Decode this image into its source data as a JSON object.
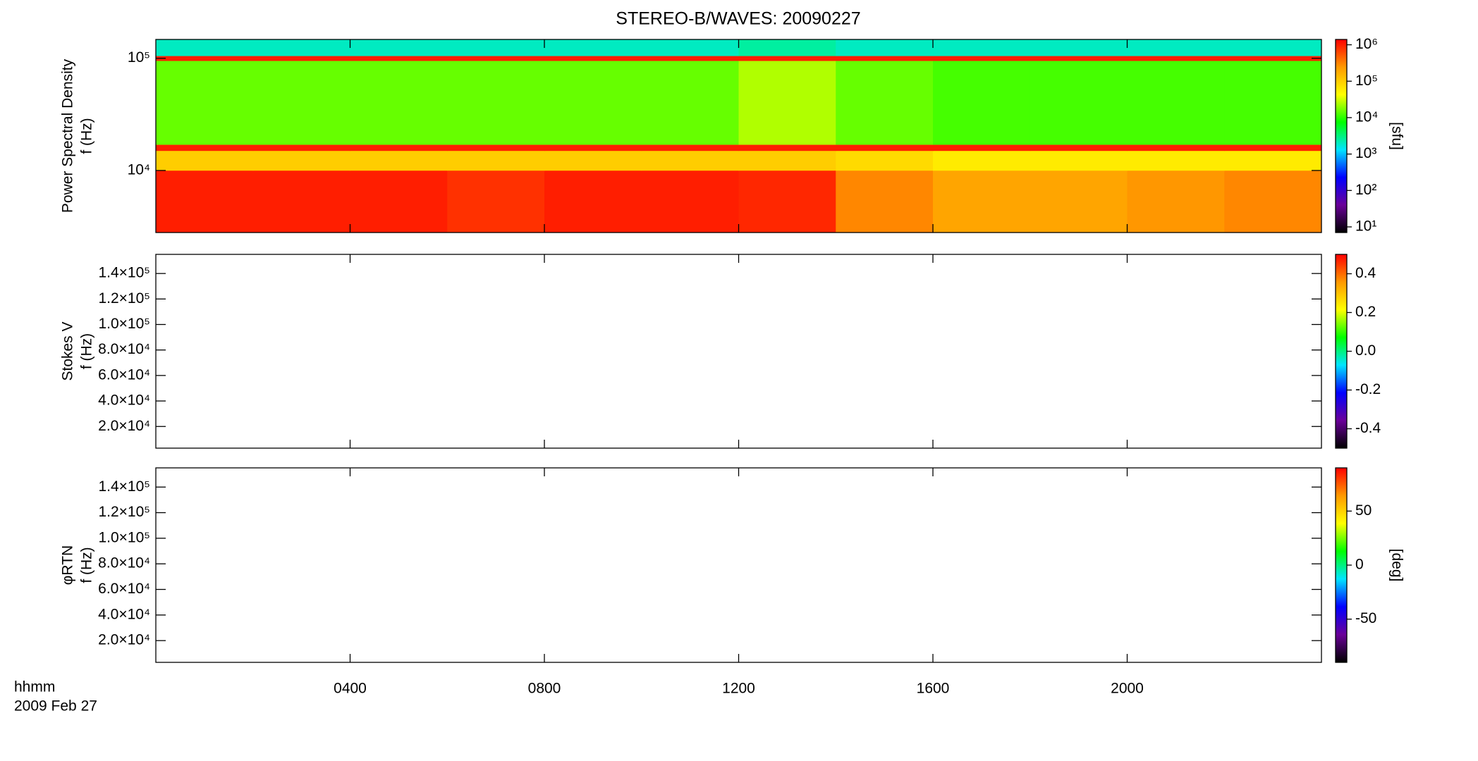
{
  "title": "STEREO-B/WAVES: 20090227",
  "chart_data": [
    {
      "type": "heatmap",
      "ylabel": [
        "Power Spectral Density",
        "f (Hz)"
      ],
      "ylog": true,
      "ylim": [
        2800,
        147000
      ],
      "yticks": [
        {
          "value": 10000,
          "label": "10⁴"
        },
        {
          "value": 100000,
          "label": "10⁵"
        }
      ],
      "x": [
        0,
        2,
        4,
        6,
        8,
        10,
        12,
        14,
        16,
        18,
        20,
        22,
        24
      ],
      "bins": [
        2800,
        10000,
        15000,
        17000,
        95000,
        105000,
        147000
      ],
      "values": [
        [
          1000000,
          1000000,
          1000000,
          800000,
          1000000,
          1000000,
          900000,
          300000,
          200000,
          200000,
          250000,
          300000
        ],
        [
          100000,
          100000,
          100000,
          100000,
          100000,
          100000,
          100000,
          80000,
          60000,
          60000,
          60000,
          60000
        ],
        [
          1000000,
          1000000,
          1000000,
          1000000,
          1000000,
          1000000,
          1000000,
          1000000,
          1000000,
          1000000,
          1000000,
          1000000
        ],
        [
          15000,
          15000,
          15000,
          15000,
          15000,
          15000,
          25000,
          15000,
          12000,
          12000,
          12000,
          12000
        ],
        [
          1000000,
          1000000,
          1000000,
          1000000,
          1000000,
          1000000,
          1000000,
          1000000,
          1000000,
          1000000,
          1000000,
          1000000
        ],
        [
          2000,
          2000,
          2000,
          2000,
          2000,
          2000,
          2500,
          2000,
          2000,
          2000,
          2000,
          2000
        ]
      ],
      "colorbar": {
        "clim": [
          7,
          1400000
        ],
        "log": true,
        "label": "[sfu]",
        "ticks": [
          {
            "value": 10,
            "label": "10¹"
          },
          {
            "value": 100,
            "label": "10²"
          },
          {
            "value": 1000,
            "label": "10³"
          },
          {
            "value": 10000,
            "label": "10⁴"
          },
          {
            "value": 100000,
            "label": "10⁵"
          },
          {
            "value": 1000000,
            "label": "10⁶"
          }
        ]
      },
      "colormap": [
        "#000000",
        "#6a0099",
        "#0000ff",
        "#00e5ff",
        "#00ff00",
        "#ffff00",
        "#ff9900",
        "#ff0000"
      ]
    },
    {
      "type": "heatmap",
      "ylabel": [
        "Stokes V",
        "f (Hz)"
      ],
      "ylog": false,
      "ylim": [
        3000,
        155000
      ],
      "yticks": [
        {
          "value": 20000,
          "label": "2.0×10⁴"
        },
        {
          "value": 40000,
          "label": "4.0×10⁴"
        },
        {
          "value": 60000,
          "label": "6.0×10⁴"
        },
        {
          "value": 80000,
          "label": "8.0×10⁴"
        },
        {
          "value": 100000,
          "label": "1.0×10⁵"
        },
        {
          "value": 120000,
          "label": "1.2×10⁵"
        },
        {
          "value": 140000,
          "label": "1.4×10⁵"
        }
      ],
      "colorbar": {
        "clim": [
          -0.5,
          0.5
        ],
        "log": false,
        "ticks": [
          -0.4,
          -0.2,
          {
            "value": 0,
            "label": "0.0"
          },
          0.2,
          0.4
        ]
      },
      "colormap": [
        "#000000",
        "#6a0099",
        "#0000ff",
        "#00e5ff",
        "#00ff00",
        "#ffff00",
        "#ff9900",
        "#ff0000"
      ]
    },
    {
      "type": "heatmap",
      "ylabel": [
        "φRTN",
        "f (Hz)"
      ],
      "ylog": false,
      "ylim": [
        3000,
        155000
      ],
      "yticks": [
        {
          "value": 20000,
          "label": "2.0×10⁴"
        },
        {
          "value": 40000,
          "label": "4.0×10⁴"
        },
        {
          "value": 60000,
          "label": "6.0×10⁴"
        },
        {
          "value": 80000,
          "label": "8.0×10⁴"
        },
        {
          "value": 100000,
          "label": "1.0×10⁵"
        },
        {
          "value": 120000,
          "label": "1.2×10⁵"
        },
        {
          "value": 140000,
          "label": "1.4×10⁵"
        }
      ],
      "xlabel": "hhmm",
      "date": "2009 Feb 27",
      "xlim": [
        0,
        24
      ],
      "xticks": [
        {
          "value": 4,
          "label": "0400"
        },
        {
          "value": 8,
          "label": "0800"
        },
        {
          "value": 12,
          "label": "1200"
        },
        {
          "value": 16,
          "label": "1600"
        },
        {
          "value": 20,
          "label": "2000"
        }
      ],
      "colorbar": {
        "clim": [
          -90,
          90
        ],
        "log": false,
        "label": "[deg]",
        "ticks": [
          -50,
          0,
          50
        ]
      },
      "colormap": [
        "#000000",
        "#6a0099",
        "#0000ff",
        "#00e5ff",
        "#00ff00",
        "#ffff00",
        "#ff9900",
        "#ff0000"
      ]
    }
  ]
}
